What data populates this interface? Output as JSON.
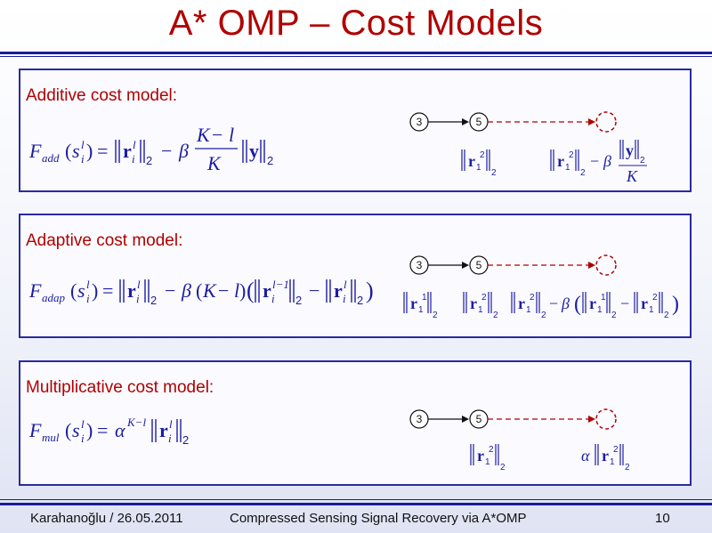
{
  "slide": {
    "title": "A* OMP – Cost Models",
    "footer_left": "Karahanoğlu / 26.05.2011",
    "footer_center": "Compressed Sensing Signal Recovery via A*OMP",
    "footer_page": "10"
  },
  "panels": [
    {
      "label": "Additive cost model:",
      "node_a": "3",
      "node_b": "5"
    },
    {
      "label": "Adaptive cost model:",
      "node_a": "3",
      "node_b": "5"
    },
    {
      "label": "Multiplicative cost model:",
      "node_a": "3",
      "node_b": "5"
    }
  ],
  "colors": {
    "title": "#b00000",
    "border": "#2a2aa0",
    "math": "#1c1ca0",
    "path_dash": "#b00000"
  }
}
